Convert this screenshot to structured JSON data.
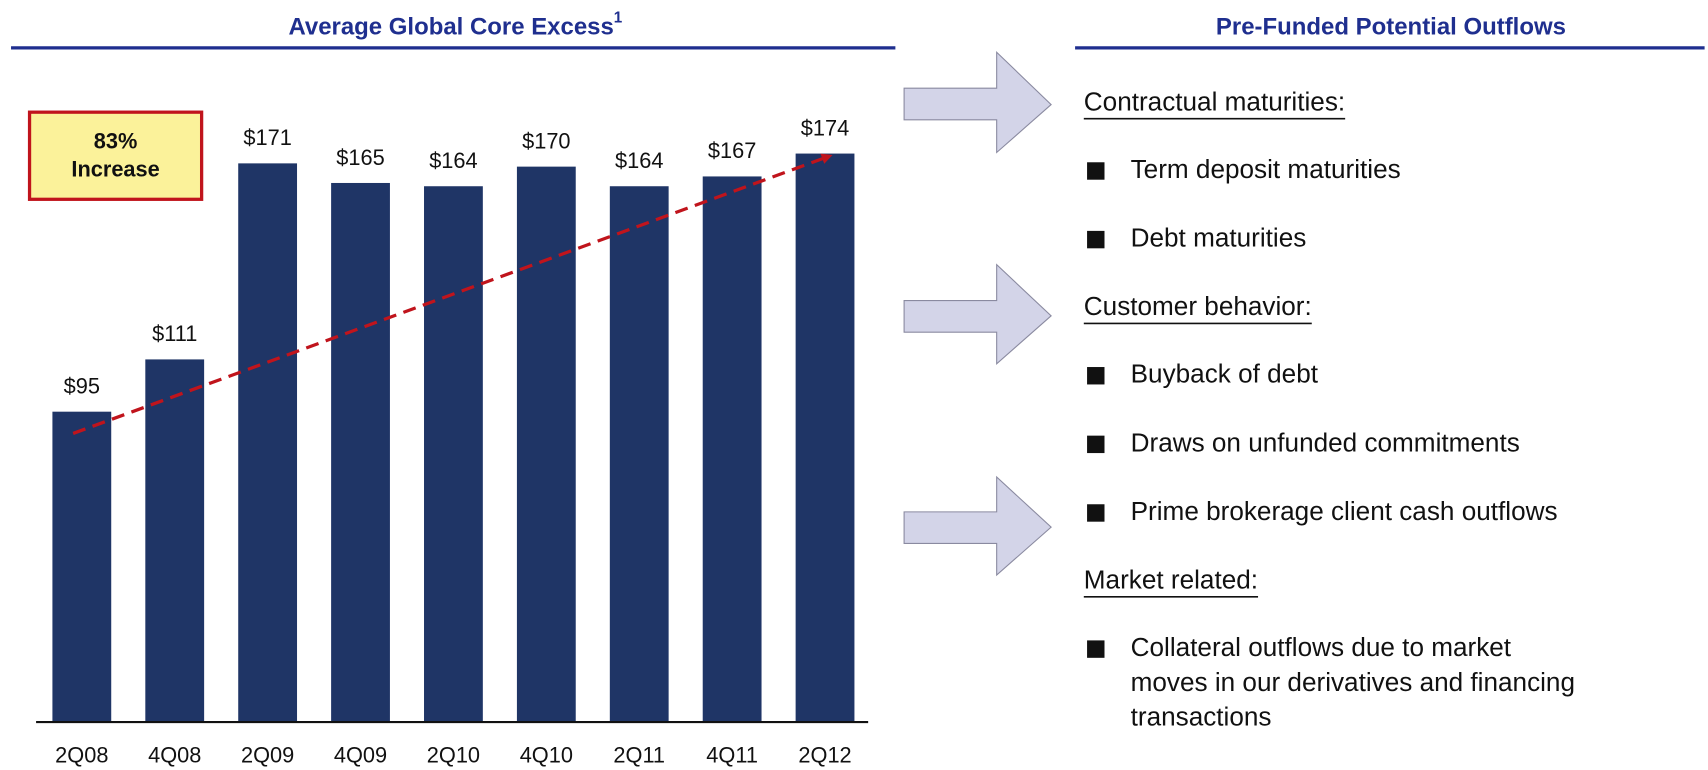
{
  "chart_data": {
    "type": "bar",
    "title": "Average Global Core Excess",
    "title_note": "1",
    "categories": [
      "2Q08",
      "4Q08",
      "2Q09",
      "4Q09",
      "2Q10",
      "4Q10",
      "2Q11",
      "4Q11",
      "2Q12"
    ],
    "values": [
      95,
      111,
      171,
      165,
      164,
      170,
      164,
      167,
      174
    ],
    "value_labels": [
      "$95",
      "$111",
      "$171",
      "$165",
      "$164",
      "$170",
      "$164",
      "$167",
      "$174"
    ],
    "color": "#1f3566",
    "trend_color": "#c0141c",
    "annotation": [
      "83%",
      "Increase"
    ]
  },
  "panel": {
    "title": "Pre-Funded Potential Outflows",
    "sections": [
      {
        "heading": "Contractual maturities:",
        "bullets": [
          [
            "Term deposit maturities"
          ],
          [
            "Debt maturities"
          ]
        ]
      },
      {
        "heading": "Customer behavior:",
        "bullets": [
          [
            "Buyback of debt"
          ],
          [
            "Draws on unfunded commitments"
          ],
          [
            "Prime brokerage client cash outflows"
          ]
        ]
      },
      {
        "heading": "Market related:",
        "bullets": [
          [
            "Collateral outflows due to market",
            "moves in our derivatives and financing",
            "transactions"
          ]
        ]
      }
    ]
  }
}
